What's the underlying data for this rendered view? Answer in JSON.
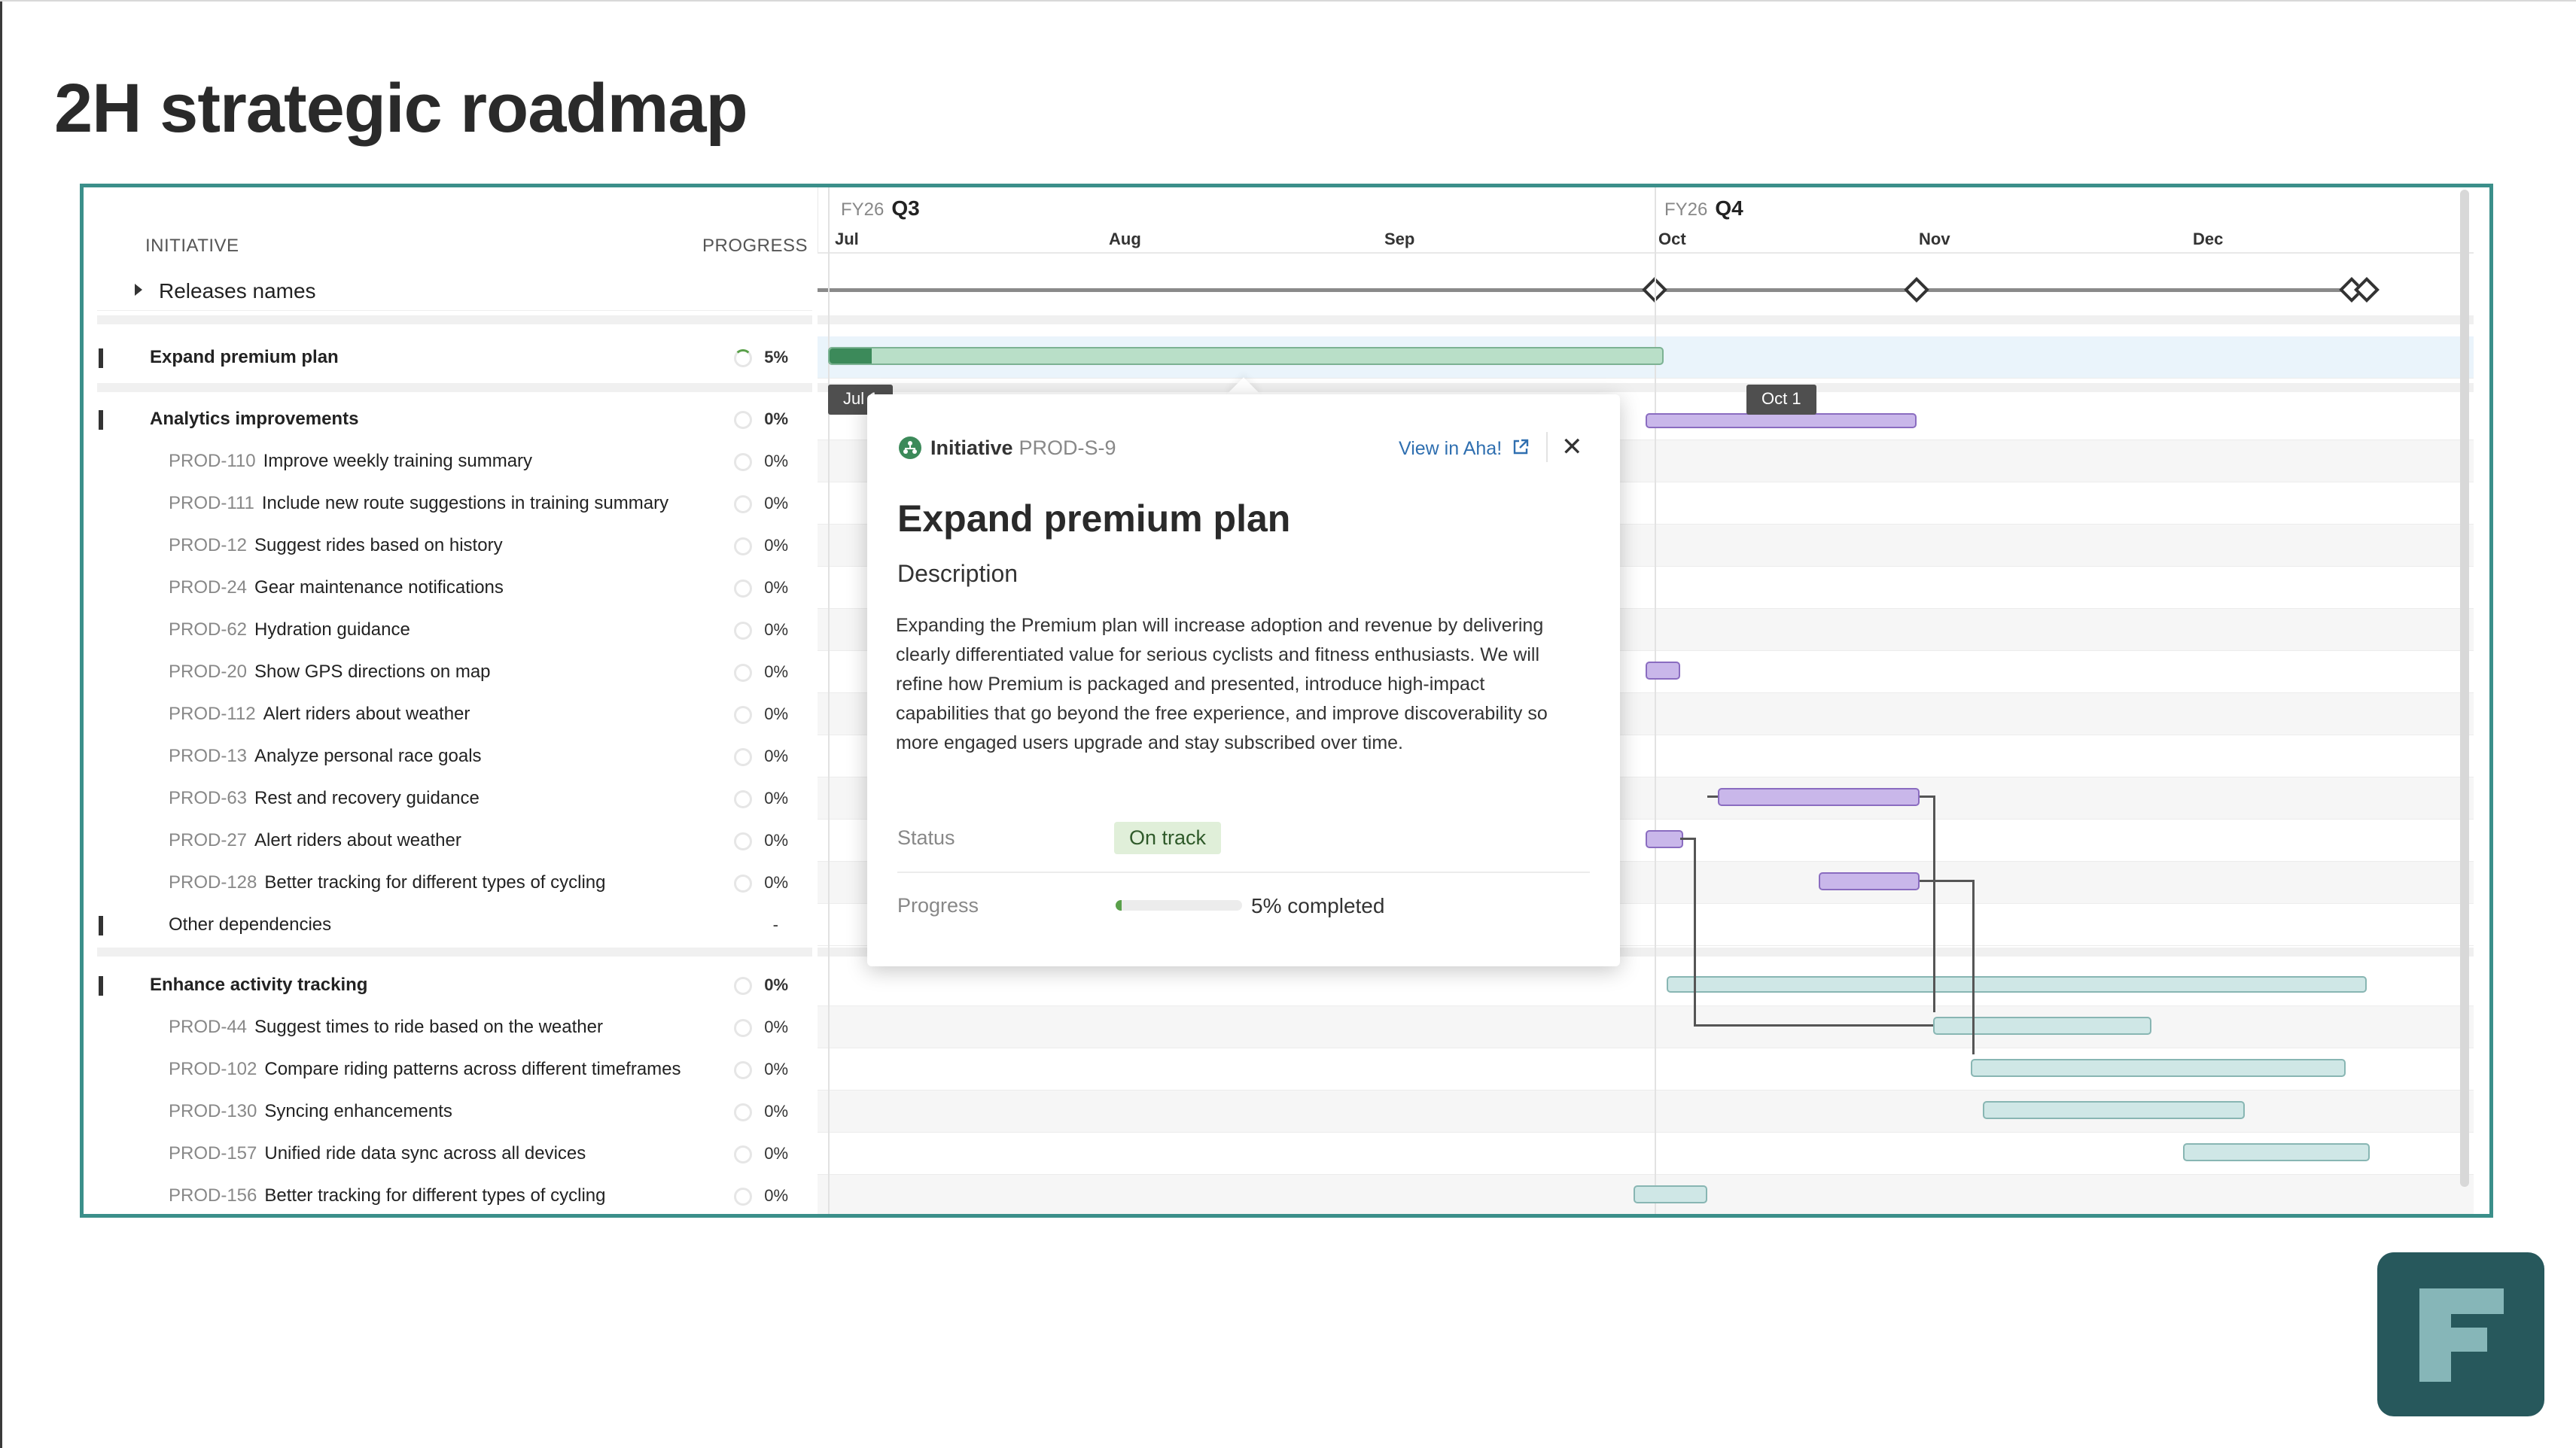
{
  "page_title": "2H strategic roadmap",
  "left_panel": {
    "col_initiative": "INITIATIVE",
    "col_progress": "PROGRESS",
    "releases_label": "Releases names",
    "rows": [
      {
        "kind": "group",
        "code": "",
        "name": "Expand premium plan",
        "progress": "5%"
      },
      {
        "kind": "group",
        "code": "",
        "name": "Analytics improvements",
        "progress": "0%"
      },
      {
        "kind": "child",
        "code": "PROD-110",
        "name": "Improve weekly training summary",
        "progress": "0%"
      },
      {
        "kind": "child",
        "code": "PROD-111",
        "name": "Include new route suggestions in training summary",
        "progress": "0%"
      },
      {
        "kind": "child",
        "code": "PROD-12",
        "name": "Suggest rides based on history",
        "progress": "0%"
      },
      {
        "kind": "child",
        "code": "PROD-24",
        "name": "Gear maintenance notifications",
        "progress": "0%"
      },
      {
        "kind": "child",
        "code": "PROD-62",
        "name": "Hydration guidance",
        "progress": "0%"
      },
      {
        "kind": "child",
        "code": "PROD-20",
        "name": "Show GPS directions on map",
        "progress": "0%"
      },
      {
        "kind": "child",
        "code": "PROD-112",
        "name": "Alert riders about weather",
        "progress": "0%"
      },
      {
        "kind": "child",
        "code": "PROD-13",
        "name": "Analyze personal race goals",
        "progress": "0%"
      },
      {
        "kind": "child",
        "code": "PROD-63",
        "name": "Rest and recovery guidance",
        "progress": "0%"
      },
      {
        "kind": "child",
        "code": "PROD-27",
        "name": "Alert riders about weather",
        "progress": "0%"
      },
      {
        "kind": "child",
        "code": "PROD-128",
        "name": "Better tracking for different types of cycling",
        "progress": "0%"
      },
      {
        "kind": "other",
        "code": "",
        "name": "Other dependencies",
        "progress": "-"
      },
      {
        "kind": "group",
        "code": "",
        "name": "Enhance activity tracking",
        "progress": "0%"
      },
      {
        "kind": "child",
        "code": "PROD-44",
        "name": "Suggest times to ride based on the weather",
        "progress": "0%"
      },
      {
        "kind": "child",
        "code": "PROD-102",
        "name": "Compare riding patterns across different timeframes",
        "progress": "0%"
      },
      {
        "kind": "child",
        "code": "PROD-130",
        "name": "Syncing enhancements",
        "progress": "0%"
      },
      {
        "kind": "child",
        "code": "PROD-157",
        "name": "Unified ride data sync across all devices",
        "progress": "0%"
      },
      {
        "kind": "child",
        "code": "PROD-156",
        "name": "Better tracking for different types of cycling",
        "progress": "0%"
      }
    ]
  },
  "timeline": {
    "q3_fy": "FY26",
    "q3_label": "Q3",
    "q4_fy": "FY26",
    "q4_label": "Q4",
    "months": [
      "Jul",
      "Aug",
      "Sep",
      "Oct",
      "Nov",
      "Dec"
    ],
    "tag_start": "Jul 1",
    "tag_end": "Oct 1"
  },
  "popup": {
    "type_label": "Initiative",
    "type_id": "PROD-S-9",
    "view_link": "View in Aha!",
    "title": "Expand premium plan",
    "description_heading": "Description",
    "description": "Expanding the Premium plan will increase adoption and revenue by delivering clearly differentiated value for serious cyclists and fitness enthusiasts. We will refine how Premium is packaged and presented, introduce high-impact capabilities that go beyond the free experience, and improve discoverability so more engaged users upgrade and stay subscribed over time.",
    "status_label": "Status",
    "status_value": "On track",
    "progress_label": "Progress",
    "progress_value": 0.05,
    "progress_text": "5% completed",
    "status_color": "#e0efd9"
  },
  "icons": {
    "initiative_icon": "hierarchy-icon",
    "external_link_icon": "external-link-icon",
    "close_icon": "close-icon",
    "caret_icon": "caret-right-icon",
    "logo": "f-logo"
  }
}
